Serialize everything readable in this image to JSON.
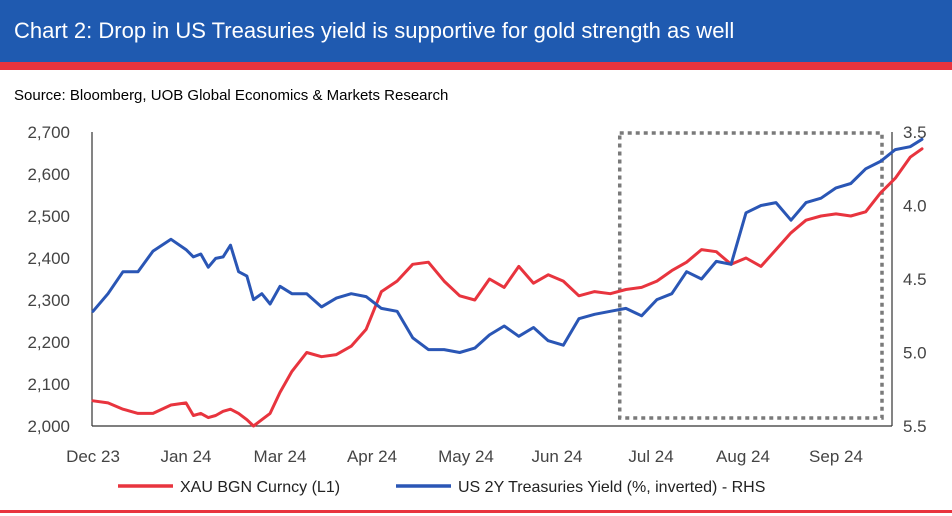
{
  "header": {
    "title": "Chart 2: Drop in US Treasuries yield is supportive for gold strength as well",
    "source": "Source: Bloomberg, UOB Global Economics & Markets Research"
  },
  "colors": {
    "title_bg": "#1f5ab0",
    "accent_red": "#e8343e",
    "gold_line": "#e8343e",
    "yield_line": "#2a56b5",
    "highlight_box": "#7a7a7a"
  },
  "chart_data": {
    "type": "line",
    "x_ticks": [
      "Dec 23",
      "Jan 24",
      "Mar 24",
      "Apr 24",
      "May 24",
      "Jun 24",
      "Jul 24",
      "Aug 24",
      "Sep 24"
    ],
    "left_axis": {
      "ticks": [
        "2,700",
        "2,600",
        "2,500",
        "2,400",
        "2,300",
        "2,200",
        "2,100",
        "2,000"
      ],
      "ylim": [
        2000,
        2700
      ]
    },
    "right_axis": {
      "ticks": [
        "3.5",
        "4.0",
        "4.5",
        "5.0",
        "5.5"
      ],
      "ylim": [
        3.5,
        5.5
      ],
      "inverted": true
    },
    "grid": false,
    "legend_position": "bottom",
    "highlight_region": {
      "from": "2024-06-29",
      "to": "2024-09-30"
    },
    "series": [
      {
        "name": "XAU BGN Curncy  (L1)",
        "axis": "left",
        "x": [
          "2023-12-01",
          "2023-12-06",
          "2023-12-11",
          "2023-12-16",
          "2023-12-21",
          "2023-12-27",
          "2024-01-01",
          "2024-01-06",
          "2024-01-11",
          "2024-01-16",
          "2024-01-21",
          "2024-01-26",
          "2024-01-31",
          "2024-02-05",
          "2024-02-10",
          "2024-02-14",
          "2024-02-19",
          "2024-02-24",
          "2024-03-01",
          "2024-03-05",
          "2024-03-10",
          "2024-03-15",
          "2024-03-20",
          "2024-03-25",
          "2024-03-30",
          "2024-04-04",
          "2024-04-09",
          "2024-04-14",
          "2024-04-19",
          "2024-04-24",
          "2024-04-29",
          "2024-05-04",
          "2024-05-09",
          "2024-05-14",
          "2024-05-19",
          "2024-05-24",
          "2024-05-29",
          "2024-06-03",
          "2024-06-08",
          "2024-06-13",
          "2024-06-18",
          "2024-06-23",
          "2024-06-28",
          "2024-07-03",
          "2024-07-08",
          "2024-07-13",
          "2024-07-18",
          "2024-07-23",
          "2024-07-28",
          "2024-08-02",
          "2024-08-07",
          "2024-08-12",
          "2024-08-17",
          "2024-08-22",
          "2024-08-27",
          "2024-09-01",
          "2024-09-06",
          "2024-09-11",
          "2024-09-16",
          "2024-09-21",
          "2024-09-26",
          "2024-09-30"
        ],
        "values": [
          2060,
          2055,
          2040,
          2030,
          2030,
          2050,
          2055,
          2025,
          2030,
          2020,
          2025,
          2035,
          2040,
          2030,
          2015,
          2000,
          2015,
          2030,
          2080,
          2130,
          2175,
          2165,
          2170,
          2190,
          2230,
          2320,
          2345,
          2385,
          2390,
          2345,
          2310,
          2300,
          2350,
          2330,
          2380,
          2340,
          2360,
          2345,
          2310,
          2320,
          2315,
          2325,
          2330,
          2345,
          2370,
          2390,
          2420,
          2415,
          2385,
          2400,
          2380,
          2420,
          2460,
          2490,
          2500,
          2505,
          2500,
          2510,
          2555,
          2590,
          2640,
          2660
        ]
      },
      {
        "name": "US 2Y Treasuries Yield (%, inverted) - RHS",
        "axis": "right",
        "x": [
          "2023-12-01",
          "2023-12-06",
          "2023-12-11",
          "2023-12-16",
          "2023-12-21",
          "2023-12-27",
          "2024-01-01",
          "2024-01-06",
          "2024-01-11",
          "2024-01-16",
          "2024-01-21",
          "2024-01-26",
          "2024-01-31",
          "2024-02-05",
          "2024-02-10",
          "2024-02-14",
          "2024-02-19",
          "2024-02-24",
          "2024-03-01",
          "2024-03-05",
          "2024-03-10",
          "2024-03-15",
          "2024-03-20",
          "2024-03-25",
          "2024-03-30",
          "2024-04-04",
          "2024-04-09",
          "2024-04-14",
          "2024-04-19",
          "2024-04-24",
          "2024-04-29",
          "2024-05-04",
          "2024-05-09",
          "2024-05-14",
          "2024-05-19",
          "2024-05-24",
          "2024-05-29",
          "2024-06-03",
          "2024-06-08",
          "2024-06-13",
          "2024-06-18",
          "2024-06-23",
          "2024-06-28",
          "2024-07-03",
          "2024-07-08",
          "2024-07-13",
          "2024-07-18",
          "2024-07-23",
          "2024-07-28",
          "2024-08-02",
          "2024-08-07",
          "2024-08-12",
          "2024-08-17",
          "2024-08-22",
          "2024-08-27",
          "2024-09-01",
          "2024-09-06",
          "2024-09-11",
          "2024-09-16",
          "2024-09-21",
          "2024-09-26",
          "2024-09-30"
        ],
        "values": [
          4.72,
          4.6,
          4.45,
          4.45,
          4.31,
          4.23,
          4.3,
          4.35,
          4.33,
          4.42,
          4.36,
          4.35,
          4.27,
          4.45,
          4.48,
          4.64,
          4.6,
          4.67,
          4.55,
          4.6,
          4.6,
          4.69,
          4.63,
          4.6,
          4.62,
          4.7,
          4.72,
          4.9,
          4.98,
          4.98,
          5.0,
          4.97,
          4.88,
          4.82,
          4.89,
          4.83,
          4.92,
          4.95,
          4.77,
          4.74,
          4.72,
          4.7,
          4.75,
          4.64,
          4.6,
          4.45,
          4.5,
          4.38,
          4.4,
          4.05,
          4.0,
          3.98,
          4.1,
          3.98,
          3.95,
          3.88,
          3.85,
          3.75,
          3.7,
          3.62,
          3.6,
          3.55
        ]
      }
    ]
  }
}
